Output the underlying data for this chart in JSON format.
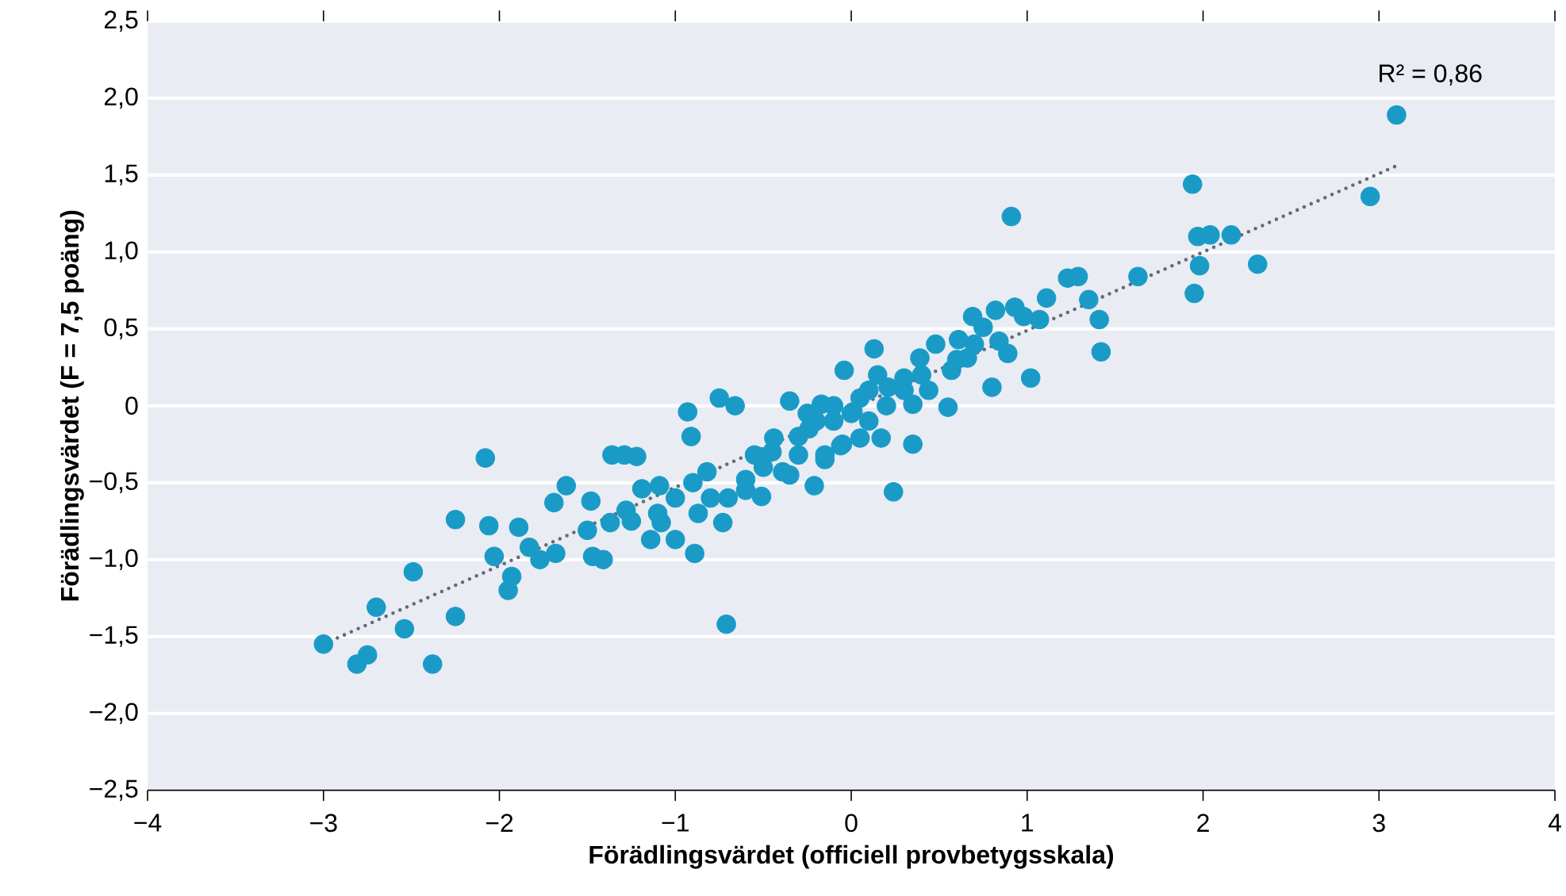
{
  "chart_data": {
    "type": "scatter",
    "xlabel": "Förädlingsvärdet (officiell provbetygsskala)",
    "ylabel": "Förädlingsvärdet (F = 7,5 poäng)",
    "annotations": [
      "R² = 0,86"
    ],
    "xlim": [
      -4,
      4
    ],
    "ylim": [
      -2.5,
      2.5
    ],
    "xticks": [
      {
        "value": -4,
        "label": "−4"
      },
      {
        "value": -3,
        "label": "−3"
      },
      {
        "value": -2,
        "label": "−2"
      },
      {
        "value": -1,
        "label": "−1"
      },
      {
        "value": 0,
        "label": "0"
      },
      {
        "value": 1,
        "label": "1"
      },
      {
        "value": 2,
        "label": "2"
      },
      {
        "value": 3,
        "label": "3"
      },
      {
        "value": 4,
        "label": "4"
      }
    ],
    "yticks": [
      {
        "value": -2.5,
        "label": "−2,5"
      },
      {
        "value": -2,
        "label": "−2,0"
      },
      {
        "value": -1.5,
        "label": "−1,5"
      },
      {
        "value": -1,
        "label": "−1,0"
      },
      {
        "value": -0.5,
        "label": "−0,5"
      },
      {
        "value": 0,
        "label": "0"
      },
      {
        "value": 0.5,
        "label": "0,5"
      },
      {
        "value": 1,
        "label": "1,0"
      },
      {
        "value": 1.5,
        "label": "1,5"
      },
      {
        "value": 2,
        "label": "2,0"
      },
      {
        "value": 2.5,
        "label": "2,5"
      }
    ],
    "grid": "y",
    "marker": "circle",
    "series": [
      {
        "color": "#1a9bc7",
        "x": [
          -3.0,
          -2.81,
          -2.75,
          -2.7,
          -2.54,
          -2.49,
          -2.38,
          -2.25,
          -2.25,
          -2.08,
          -2.06,
          -2.03,
          -1.95,
          -1.93,
          -1.89,
          -1.83,
          -1.77,
          -1.69,
          -1.68,
          -1.62,
          -1.5,
          -1.48,
          -1.47,
          -1.41,
          -1.36,
          -1.29,
          -1.22,
          -1.37,
          -1.28,
          -1.19,
          -1.14,
          -1.08,
          -1.09,
          -1.0,
          -0.93,
          -0.91,
          -0.89,
          -0.87,
          -0.82,
          -0.75,
          -0.7,
          -0.71,
          -0.66,
          -0.73,
          -0.6,
          -0.55,
          -0.51,
          -0.44,
          -0.39,
          -0.35,
          -0.3,
          -0.24,
          -0.21,
          -0.17,
          -0.15,
          -0.1,
          -0.06,
          -0.04,
          0.01,
          0.05,
          0.1,
          0.13,
          0.17,
          0.21,
          0.24,
          0.3,
          0.35,
          0.35,
          0.39,
          0.44,
          0.48,
          0.55,
          0.57,
          0.61,
          0.66,
          0.69,
          0.75,
          0.8,
          0.82,
          0.84,
          0.89,
          0.91,
          0.93,
          0.98,
          1.02,
          1.07,
          1.11,
          1.23,
          1.29,
          1.35,
          1.41,
          1.42,
          1.63,
          1.94,
          1.95,
          1.97,
          1.98,
          2.04,
          2.16,
          2.31,
          2.95,
          3.1,
          -0.5,
          -0.45,
          -0.3,
          -0.2,
          -0.1,
          0.0,
          0.05,
          0.1,
          0.2,
          0.3,
          -0.6,
          -0.8,
          -0.9,
          -1.0,
          -1.1,
          -1.25,
          -0.35,
          -0.25,
          0.15,
          0.4,
          0.6,
          0.7,
          -0.05,
          -0.15
        ],
        "values": [
          -1.55,
          -1.68,
          -1.62,
          -1.31,
          -1.45,
          -1.08,
          -1.68,
          -0.74,
          -1.37,
          -0.34,
          -0.78,
          -0.98,
          -1.2,
          -1.11,
          -0.79,
          -0.92,
          -1.0,
          -0.63,
          -0.96,
          -0.52,
          -0.81,
          -0.62,
          -0.98,
          -1.0,
          -0.32,
          -0.32,
          -0.33,
          -0.76,
          -0.68,
          -0.54,
          -0.87,
          -0.76,
          -0.52,
          -0.87,
          -0.04,
          -0.2,
          -0.96,
          -0.7,
          -0.43,
          0.05,
          -0.6,
          -1.42,
          0.0,
          -0.76,
          -0.48,
          -0.32,
          -0.59,
          -0.21,
          -0.43,
          0.03,
          -0.32,
          -0.15,
          -0.52,
          0.01,
          -0.32,
          -0.1,
          -0.26,
          0.23,
          -0.04,
          -0.21,
          0.1,
          0.37,
          -0.21,
          0.12,
          -0.56,
          0.18,
          0.01,
          -0.25,
          0.31,
          0.1,
          0.4,
          -0.01,
          0.23,
          0.43,
          0.31,
          0.58,
          0.51,
          0.12,
          0.62,
          0.42,
          0.34,
          1.23,
          0.64,
          0.58,
          0.18,
          0.56,
          0.7,
          0.83,
          0.84,
          0.69,
          0.56,
          0.35,
          0.84,
          1.44,
          0.73,
          1.1,
          0.91,
          1.11,
          1.11,
          0.92,
          1.36,
          1.89,
          -0.4,
          -0.3,
          -0.2,
          -0.1,
          0.0,
          -0.05,
          0.05,
          -0.1,
          0.0,
          0.1,
          -0.55,
          -0.6,
          -0.5,
          -0.6,
          -0.7,
          -0.75,
          -0.45,
          -0.05,
          0.2,
          0.2,
          0.3,
          0.4,
          -0.25,
          -0.35
        ]
      },
      {
        "type": "line",
        "color": "#5f6b78",
        "line_style": "dotted",
        "marker": "none",
        "x": [
          -3.0,
          3.1
        ],
        "values": [
          -1.55,
          1.56
        ]
      }
    ]
  }
}
